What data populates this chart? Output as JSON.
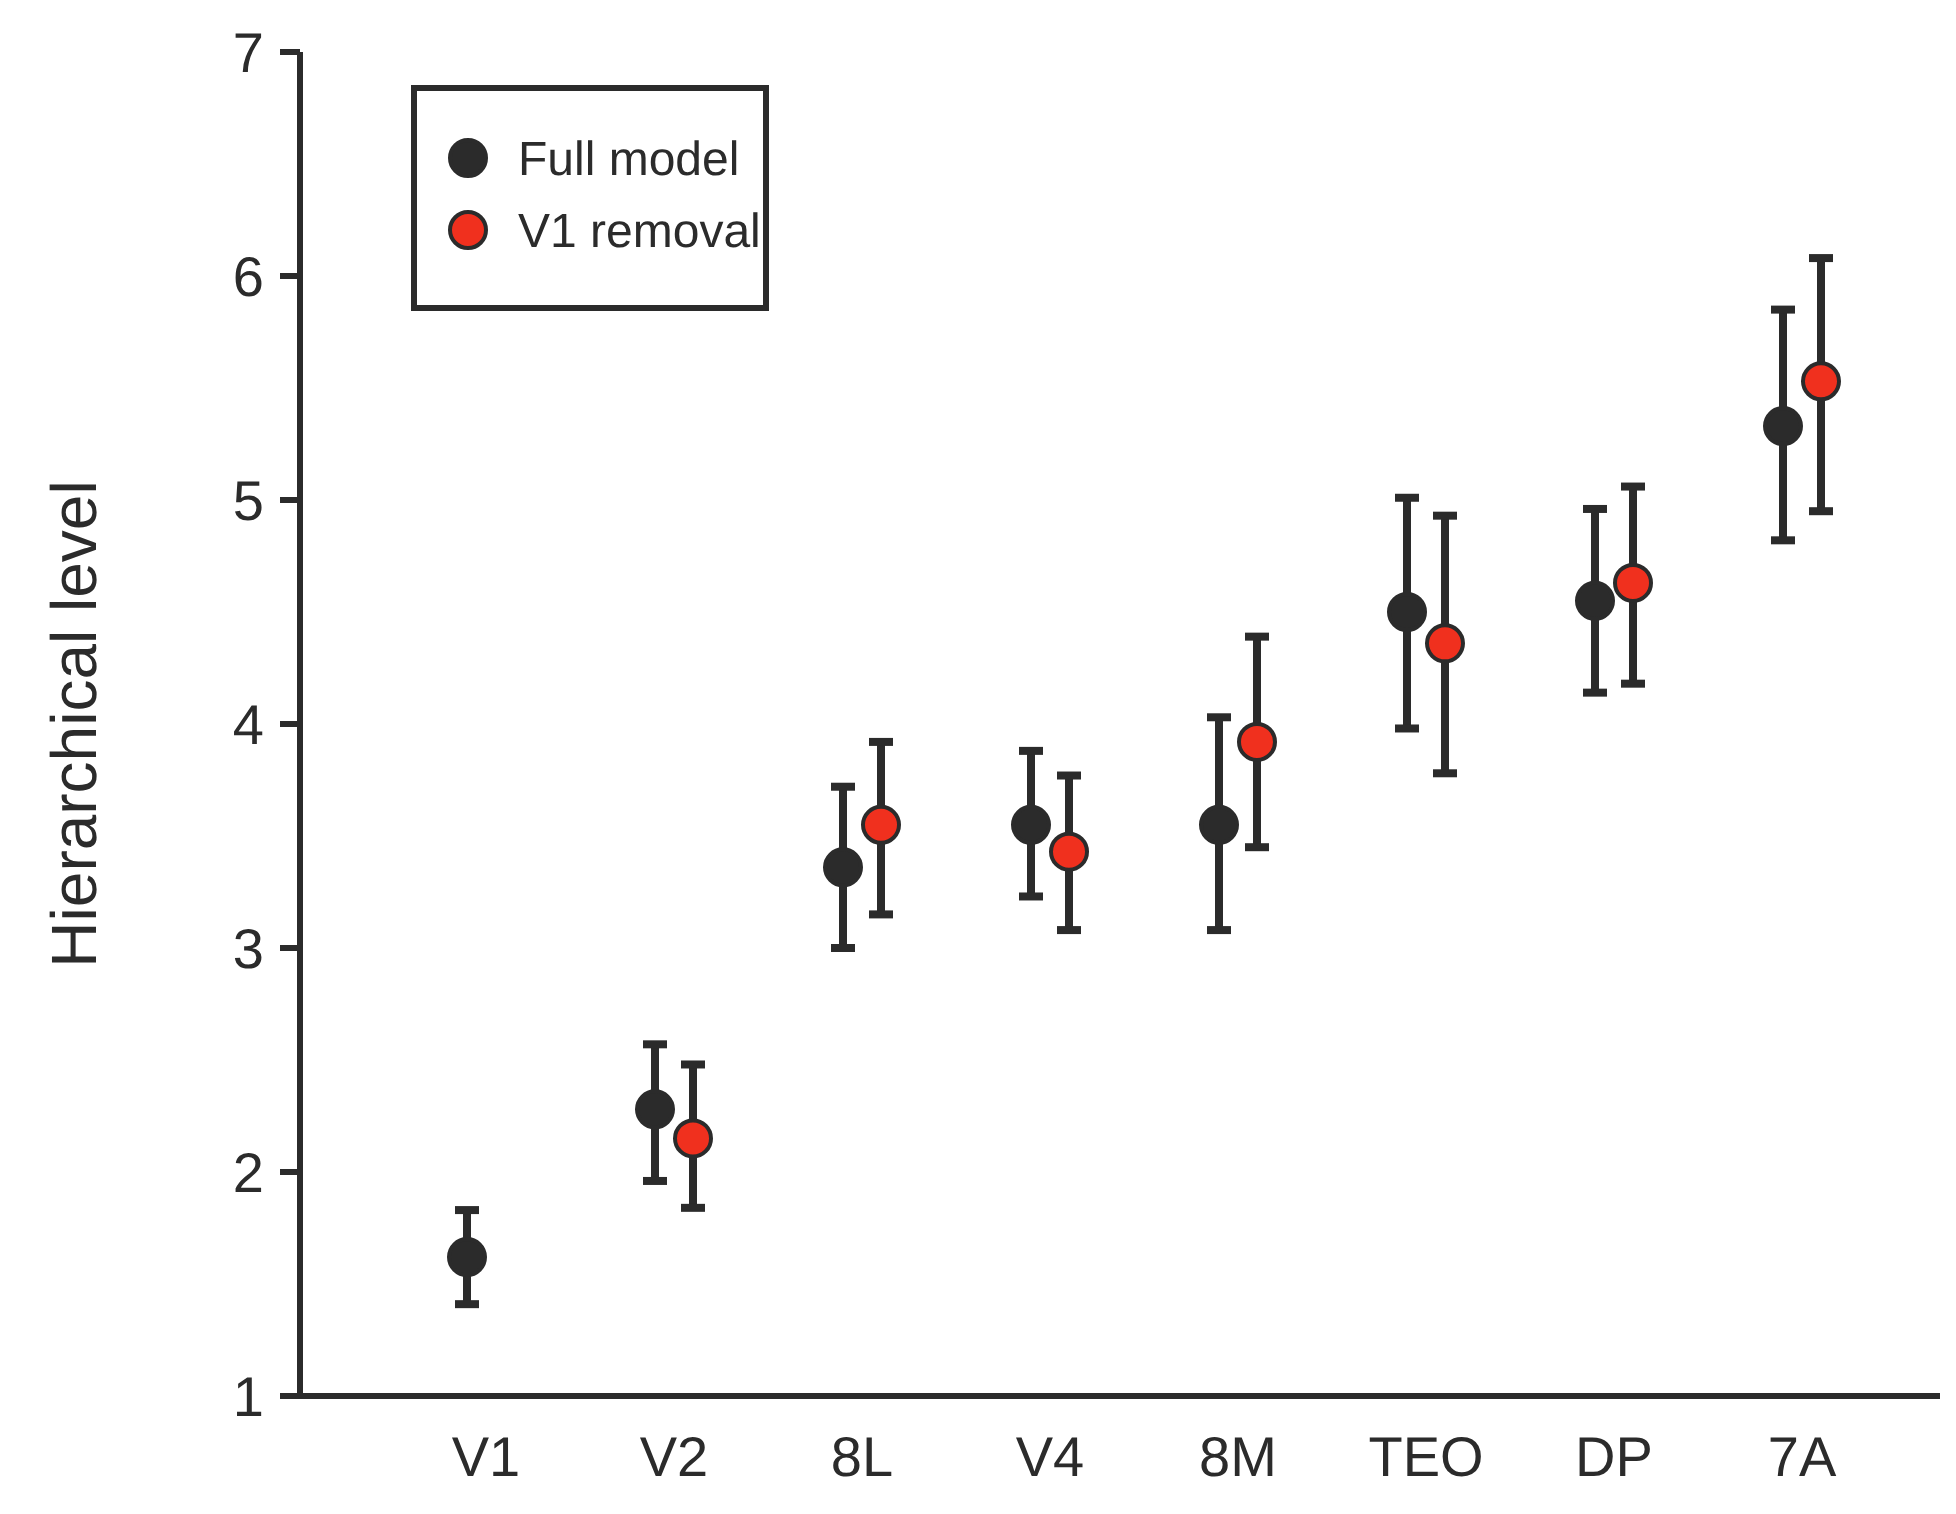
{
  "chart_data": {
    "type": "scatter",
    "ylabel": "Hierarchical level",
    "categories": [
      "V1",
      "V2",
      "8L",
      "V4",
      "8M",
      "TEO",
      "DP",
      "7A"
    ],
    "series": [
      {
        "name": "Full model",
        "color": "#2b2b2b",
        "values": [
          1.62,
          2.28,
          3.36,
          3.55,
          3.55,
          4.5,
          4.55,
          5.33
        ],
        "errors": [
          [
            1.41,
            1.83
          ],
          [
            1.96,
            2.57
          ],
          [
            3.0,
            3.72
          ],
          [
            3.23,
            3.88
          ],
          [
            3.08,
            4.03
          ],
          [
            3.98,
            5.01
          ],
          [
            4.14,
            4.96
          ],
          [
            4.82,
            5.85
          ]
        ]
      },
      {
        "name": "V1 removal",
        "color": "#f0301e",
        "values": [
          null,
          2.15,
          3.55,
          3.43,
          3.92,
          4.36,
          4.63,
          5.53
        ],
        "errors": [
          null,
          [
            1.84,
            2.48
          ],
          [
            3.15,
            3.92
          ],
          [
            3.08,
            3.77
          ],
          [
            3.45,
            4.39
          ],
          [
            3.78,
            4.93
          ],
          [
            4.18,
            5.06
          ],
          [
            4.95,
            6.08
          ]
        ]
      }
    ],
    "ylim": [
      1,
      7
    ],
    "yticks": [
      1,
      2,
      3,
      4,
      5,
      6,
      7
    ],
    "legend": "top left",
    "marker": "circle"
  }
}
